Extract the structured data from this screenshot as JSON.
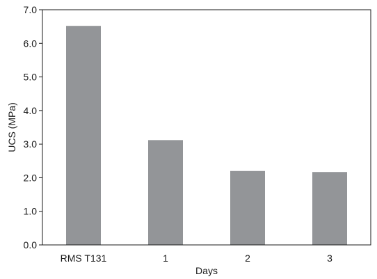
{
  "chart_data": {
    "type": "bar",
    "categories": [
      "RMS T131",
      "1",
      "2",
      "3"
    ],
    "values": [
      6.52,
      3.12,
      2.2,
      2.17
    ],
    "title": "",
    "xlabel": "Days",
    "ylabel": "UCS (MPa)",
    "ylim": [
      0,
      7
    ],
    "yticks": [
      "0.0",
      "1.0",
      "2.0",
      "3.0",
      "4.0",
      "5.0",
      "6.0",
      "7.0"
    ],
    "grid": false,
    "legend": "none",
    "bar_color": "#939598",
    "axis_color": "#1a1a1a"
  }
}
